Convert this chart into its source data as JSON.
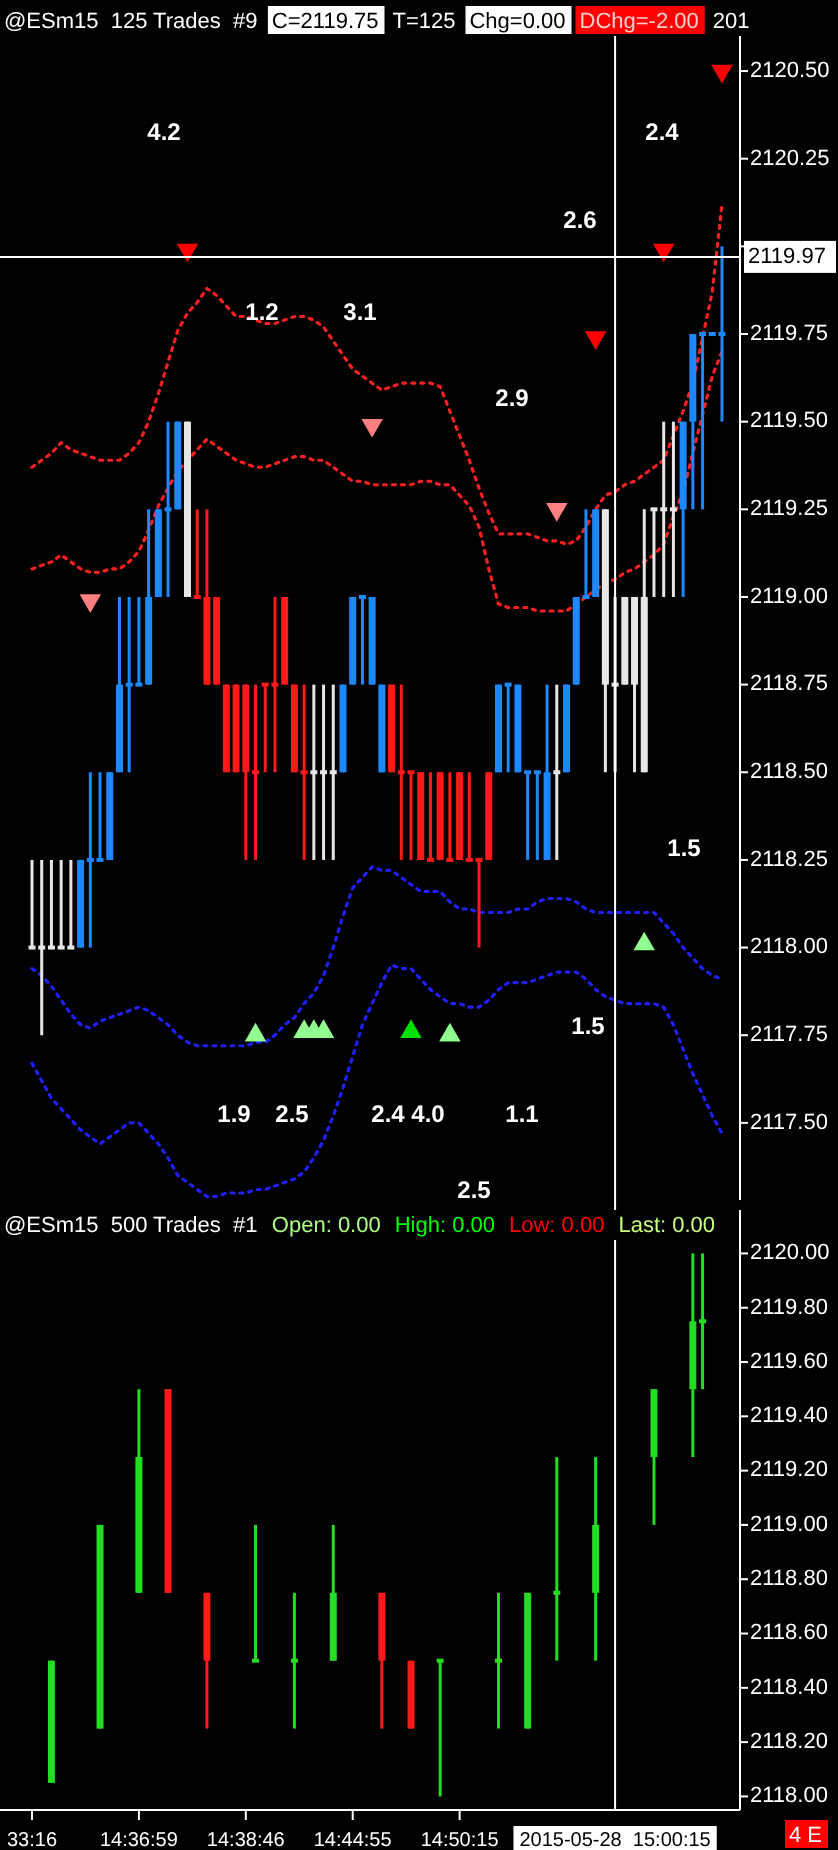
{
  "chart_data": [
    {
      "type": "candlestick",
      "title": "@ESm15  125 Trades  #9",
      "annotations": [
        "C=2119.75",
        "T=125",
        "Chg=0.00",
        "DChg=-2.00",
        "201",
        "4.2",
        "1.2",
        "3.1",
        "2.9",
        "2.6",
        "2.4",
        "1.5",
        "1.5",
        "1.9",
        "2.5",
        "2.4",
        "4.0",
        "1.1",
        "2.5"
      ],
      "categories": [
        "33:16",
        null,
        null,
        null,
        null,
        null,
        null,
        null,
        null,
        null,
        null,
        "14:36:59",
        null,
        null,
        null,
        null,
        null,
        null,
        null,
        null,
        null,
        null,
        "14:38:46",
        null,
        null,
        null,
        null,
        null,
        null,
        null,
        null,
        null,
        null,
        "14:44:55",
        null,
        null,
        null,
        null,
        null,
        null,
        null,
        null,
        null,
        null,
        "14:50:15",
        null,
        null,
        null,
        null,
        null,
        null,
        null,
        null,
        null,
        null,
        null,
        null,
        null,
        null,
        null,
        "2015-05-28  15:00:15",
        null,
        null,
        null,
        null,
        null,
        null,
        null,
        null,
        null,
        null,
        null
      ],
      "ohlc": [
        [
          2118.0,
          2118.25,
          2118.0,
          2118.0
        ],
        [
          2118.0,
          2118.25,
          2117.75,
          2118.0
        ],
        [
          2118.0,
          2118.25,
          2118.0,
          2118.0
        ],
        [
          2118.0,
          2118.25,
          2118.0,
          2118.0
        ],
        [
          2118.0,
          2118.25,
          2118.0,
          2118.0
        ],
        [
          2118.0,
          2118.25,
          2118.0,
          2118.25
        ],
        [
          2118.25,
          2118.5,
          2118.0,
          2118.25
        ],
        [
          2118.25,
          2118.5,
          2118.25,
          2118.25
        ],
        [
          2118.25,
          2118.5,
          2118.25,
          2118.5
        ],
        [
          2118.5,
          2119.0,
          2118.5,
          2118.75
        ],
        [
          2118.75,
          2119.0,
          2118.5,
          2118.75
        ],
        [
          2118.75,
          2119.0,
          2118.75,
          2118.75
        ],
        [
          2118.75,
          2119.25,
          2118.75,
          2119.0
        ],
        [
          2119.0,
          2119.25,
          2119.0,
          2119.25
        ],
        [
          2119.25,
          2119.5,
          2119.0,
          2119.25
        ],
        [
          2119.25,
          2119.5,
          2119.25,
          2119.5
        ],
        [
          2119.5,
          2119.5,
          2119.0,
          2119.0
        ],
        [
          2119.0,
          2119.25,
          2119.0,
          2119.0
        ],
        [
          2119.0,
          2119.25,
          2118.75,
          2118.75
        ],
        [
          2119.0,
          2119.0,
          2118.75,
          2118.75
        ],
        [
          2118.75,
          2118.75,
          2118.5,
          2118.5
        ],
        [
          2118.75,
          2118.75,
          2118.5,
          2118.5
        ],
        [
          2118.75,
          2118.75,
          2118.25,
          2118.5
        ],
        [
          2118.5,
          2118.75,
          2118.25,
          2118.5
        ],
        [
          2118.75,
          2118.75,
          2118.5,
          2118.75
        ],
        [
          2118.75,
          2119.0,
          2118.5,
          2118.75
        ],
        [
          2119.0,
          2119.0,
          2118.75,
          2118.75
        ],
        [
          2118.75,
          2118.75,
          2118.5,
          2118.5
        ],
        [
          2118.5,
          2118.75,
          2118.25,
          2118.5
        ],
        [
          2118.5,
          2118.75,
          2118.25,
          2118.5
        ],
        [
          2118.5,
          2118.75,
          2118.25,
          2118.5
        ],
        [
          2118.5,
          2118.75,
          2118.25,
          2118.5
        ],
        [
          2118.5,
          2118.75,
          2118.5,
          2118.75
        ],
        [
          2118.75,
          2119.0,
          2118.75,
          2119.0
        ],
        [
          2119.0,
          2119.0,
          2118.75,
          2119.0
        ],
        [
          2118.75,
          2119.0,
          2118.75,
          2119.0
        ],
        [
          2118.5,
          2118.75,
          2118.5,
          2118.75
        ],
        [
          2118.75,
          2118.75,
          2118.5,
          2118.5
        ],
        [
          2118.5,
          2118.75,
          2118.25,
          2118.5
        ],
        [
          2118.5,
          2118.5,
          2118.25,
          2118.5
        ],
        [
          2118.5,
          2118.5,
          2118.25,
          2118.25
        ],
        [
          2118.25,
          2118.5,
          2118.25,
          2118.25
        ],
        [
          2118.5,
          2118.5,
          2118.25,
          2118.25
        ],
        [
          2118.25,
          2118.5,
          2118.25,
          2118.25
        ],
        [
          2118.5,
          2118.5,
          2118.25,
          2118.25
        ],
        [
          2118.25,
          2118.5,
          2118.25,
          2118.25
        ],
        [
          2118.25,
          2118.25,
          2118.0,
          2118.25
        ],
        [
          2118.5,
          2118.5,
          2118.25,
          2118.25
        ],
        [
          2118.5,
          2118.75,
          2118.5,
          2118.75
        ],
        [
          2118.75,
          2118.75,
          2118.5,
          2118.75
        ],
        [
          2118.5,
          2118.75,
          2118.5,
          2118.75
        ],
        [
          2118.5,
          2118.5,
          2118.25,
          2118.5
        ],
        [
          2118.5,
          2118.5,
          2118.25,
          2118.5
        ],
        [
          2118.25,
          2118.75,
          2118.25,
          2118.5
        ],
        [
          2118.5,
          2118.75,
          2118.25,
          2118.5
        ],
        [
          2118.5,
          2118.75,
          2118.5,
          2118.75
        ],
        [
          2118.75,
          2119.0,
          2118.75,
          2119.0
        ],
        [
          2119.0,
          2119.25,
          2119.0,
          2119.0
        ],
        [
          2119.0,
          2119.25,
          2119.0,
          2119.25
        ],
        [
          2119.25,
          2119.25,
          2118.5,
          2118.75
        ],
        [
          2118.75,
          2119.0,
          2118.5,
          2118.75
        ],
        [
          2118.75,
          2119.0,
          2118.75,
          2119.0
        ],
        [
          2119.0,
          2119.0,
          2118.5,
          2118.75
        ],
        [
          2118.5,
          2119.25,
          2118.5,
          2119.0
        ],
        [
          2119.25,
          2119.25,
          2119.0,
          2119.25
        ],
        [
          2119.25,
          2119.5,
          2119.0,
          2119.25
        ],
        [
          2119.25,
          2119.5,
          2119.0,
          2119.25
        ],
        [
          2119.25,
          2119.5,
          2119.0,
          2119.5
        ],
        [
          2119.5,
          2119.75,
          2119.25,
          2119.75
        ],
        [
          2119.75,
          2119.75,
          2119.25,
          2119.75
        ],
        [
          2119.75,
          2119.75,
          2119.75,
          2119.75
        ],
        [
          2119.75,
          2120.0,
          2119.5,
          2119.75
        ]
      ],
      "colors": [
        "#e6e6e6",
        "#e6e6e6",
        "#e6e6e6",
        "#e6e6e6",
        "#e6e6e6",
        "#1e88ff",
        "#1e88ff",
        "#1e88ff",
        "#1e88ff",
        "#1e88ff",
        "#1e88ff",
        "#1e88ff",
        "#1e88ff",
        "#1e88ff",
        "#1e88ff",
        "#1e88ff",
        "#e6e6e6",
        "#ff1a1a",
        "#ff1a1a",
        "#ff1a1a",
        "#ff1a1a",
        "#ff1a1a",
        "#ff1a1a",
        "#ff1a1a",
        "#ff1a1a",
        "#ff1a1a",
        "#ff1a1a",
        "#ff1a1a",
        "#ff1a1a",
        "#e6e6e6",
        "#e6e6e6",
        "#e6e6e6",
        "#1e88ff",
        "#1e88ff",
        "#1e88ff",
        "#1e88ff",
        "#1e88ff",
        "#ff1a1a",
        "#ff1a1a",
        "#ff1a1a",
        "#ff1a1a",
        "#ff1a1a",
        "#ff1a1a",
        "#ff1a1a",
        "#ff1a1a",
        "#ff1a1a",
        "#ff1a1a",
        "#ff1a1a",
        "#1e88ff",
        "#1e88ff",
        "#1e88ff",
        "#1e88ff",
        "#1e88ff",
        "#1e88ff",
        "#e6e6e6",
        "#1e88ff",
        "#1e88ff",
        "#1e88ff",
        "#1e88ff",
        "#e6e6e6",
        "#e6e6e6",
        "#e6e6e6",
        "#e6e6e6",
        "#e6e6e6",
        "#e6e6e6",
        "#e6e6e6",
        "#e6e6e6",
        "#1e88ff",
        "#1e88ff",
        "#1e88ff",
        "#1e88ff",
        "#1e88ff"
      ],
      "series": [
        {
          "type": "line",
          "color": "#ff2020",
          "line_style": "dotted",
          "values": [
            2119.37,
            2119.39,
            2119.41,
            2119.44,
            2119.42,
            2119.41,
            2119.4,
            2119.39,
            2119.39,
            2119.39,
            2119.41,
            2119.44,
            2119.5,
            2119.58,
            2119.67,
            2119.76,
            2119.81,
            2119.84,
            2119.88,
            2119.86,
            2119.83,
            2119.8,
            2119.8,
            2119.79,
            2119.78,
            2119.78,
            2119.79,
            2119.8,
            2119.8,
            2119.79,
            2119.77,
            2119.73,
            2119.69,
            2119.65,
            2119.63,
            2119.61,
            2119.59,
            2119.6,
            2119.61,
            2119.61,
            2119.61,
            2119.61,
            2119.6,
            2119.53,
            2119.46,
            2119.39,
            2119.31,
            2119.24,
            2119.18,
            2119.18,
            2119.18,
            2119.18,
            2119.17,
            2119.16,
            2119.16,
            2119.15,
            2119.16,
            2119.2,
            2119.25,
            2119.29,
            2119.3,
            2119.32,
            2119.33,
            2119.35,
            2119.37,
            2119.39,
            2119.46,
            2119.53,
            2119.61,
            2119.74,
            2119.87,
            2120.12
          ]
        },
        {
          "type": "line",
          "color": "#ff2020",
          "line_style": "dotted",
          "values": [
            2119.08,
            2119.09,
            2119.1,
            2119.12,
            2119.1,
            2119.08,
            2119.07,
            2119.07,
            2119.08,
            2119.08,
            2119.1,
            2119.13,
            2119.19,
            2119.26,
            2119.31,
            2119.36,
            2119.39,
            2119.42,
            2119.45,
            2119.43,
            2119.41,
            2119.39,
            2119.38,
            2119.37,
            2119.37,
            2119.38,
            2119.39,
            2119.4,
            2119.4,
            2119.39,
            2119.39,
            2119.37,
            2119.35,
            2119.33,
            2119.33,
            2119.32,
            2119.32,
            2119.32,
            2119.32,
            2119.32,
            2119.33,
            2119.33,
            2119.32,
            2119.32,
            2119.29,
            2119.26,
            2119.2,
            2119.08,
            2118.98,
            2118.97,
            2118.97,
            2118.97,
            2118.96,
            2118.96,
            2118.96,
            2118.96,
            2118.98,
            2119.0,
            2119.02,
            2119.04,
            2119.05,
            2119.07,
            2119.08,
            2119.1,
            2119.12,
            2119.15,
            2119.23,
            2119.3,
            2119.41,
            2119.52,
            2119.63,
            2119.7
          ]
        },
        {
          "type": "line",
          "color": "#2020ff",
          "line_style": "dotted",
          "values": [
            2117.94,
            2117.92,
            2117.89,
            2117.85,
            2117.81,
            2117.78,
            2117.77,
            2117.79,
            2117.8,
            2117.81,
            2117.82,
            2117.83,
            2117.82,
            2117.8,
            2117.78,
            2117.75,
            2117.73,
            2117.72,
            2117.72,
            2117.72,
            2117.72,
            2117.72,
            2117.72,
            2117.73,
            2117.73,
            2117.75,
            2117.78,
            2117.8,
            2117.84,
            2117.87,
            2117.92,
            2118.0,
            2118.09,
            2118.17,
            2118.2,
            2118.23,
            2118.22,
            2118.22,
            2118.2,
            2118.18,
            2118.16,
            2118.16,
            2118.16,
            2118.13,
            2118.11,
            2118.11,
            2118.1,
            2118.1,
            2118.1,
            2118.1,
            2118.11,
            2118.11,
            2118.13,
            2118.14,
            2118.14,
            2118.14,
            2118.13,
            2118.11,
            2118.1,
            2118.1,
            2118.1,
            2118.1,
            2118.1,
            2118.1,
            2118.1,
            2118.07,
            2118.04,
            2118.0,
            2117.97,
            2117.94,
            2117.92,
            2117.91
          ]
        },
        {
          "type": "line",
          "color": "#2020ff",
          "line_style": "dotted",
          "values": [
            2117.67,
            2117.62,
            2117.57,
            2117.54,
            2117.51,
            2117.48,
            2117.46,
            2117.44,
            2117.46,
            2117.48,
            2117.5,
            2117.5,
            2117.47,
            2117.44,
            2117.4,
            2117.35,
            2117.33,
            2117.31,
            2117.29,
            2117.29,
            2117.3,
            2117.3,
            2117.3,
            2117.31,
            2117.31,
            2117.32,
            2117.33,
            2117.34,
            2117.36,
            2117.4,
            2117.45,
            2117.52,
            2117.6,
            2117.69,
            2117.78,
            2117.84,
            2117.9,
            2117.95,
            2117.94,
            2117.94,
            2117.91,
            2117.88,
            2117.86,
            2117.84,
            2117.84,
            2117.83,
            2117.83,
            2117.85,
            2117.88,
            2117.9,
            2117.9,
            2117.9,
            2117.91,
            2117.92,
            2117.93,
            2117.93,
            2117.93,
            2117.91,
            2117.88,
            2117.86,
            2117.85,
            2117.84,
            2117.84,
            2117.84,
            2117.84,
            2117.83,
            2117.78,
            2117.71,
            2117.64,
            2117.58,
            2117.52,
            2117.47
          ]
        },
        {
          "type": "scatter",
          "color": "#ff0000",
          "marker": "triangle-down",
          "values": [
            null,
            null,
            null,
            null,
            null,
            null,
            null,
            null,
            null,
            null,
            null,
            null,
            null,
            null,
            null,
            null,
            2119.99,
            null,
            null,
            null,
            null,
            null,
            null,
            null,
            null,
            null,
            null,
            null,
            null,
            null,
            null,
            null,
            null,
            null,
            null,
            null,
            null,
            null,
            null,
            null,
            null,
            null,
            null,
            null,
            null,
            null,
            null,
            null,
            null,
            null,
            null,
            null,
            null,
            null,
            null,
            null,
            null,
            null,
            2119.74,
            null,
            null,
            null,
            null,
            null,
            null,
            2119.99,
            null,
            null,
            null,
            null,
            null,
            2120.5
          ]
        },
        {
          "type": "scatter",
          "color": "#ff8080",
          "marker": "triangle-down",
          "values": [
            null,
            null,
            null,
            null,
            null,
            null,
            2118.99,
            null,
            null,
            null,
            null,
            null,
            null,
            null,
            null,
            null,
            null,
            null,
            null,
            null,
            null,
            null,
            null,
            null,
            null,
            null,
            null,
            null,
            null,
            null,
            null,
            null,
            null,
            null,
            null,
            2119.49,
            null,
            null,
            null,
            null,
            null,
            null,
            null,
            null,
            null,
            null,
            null,
            null,
            null,
            null,
            null,
            null,
            null,
            null,
            2119.25,
            null,
            null,
            null,
            null,
            null,
            null,
            null,
            null,
            null,
            null,
            null,
            null,
            null,
            null,
            null,
            null,
            null
          ]
        },
        {
          "type": "scatter",
          "color": "#90ff90",
          "marker": "triangle",
          "values": [
            null,
            null,
            null,
            null,
            null,
            null,
            null,
            null,
            null,
            null,
            null,
            null,
            null,
            null,
            null,
            null,
            null,
            null,
            null,
            null,
            null,
            null,
            null,
            2117.75,
            null,
            null,
            null,
            null,
            2117.76,
            2117.76,
            2117.76,
            null,
            null,
            null,
            null,
            null,
            null,
            null,
            null,
            null,
            null,
            null,
            null,
            2117.75,
            null,
            null,
            null,
            null,
            null,
            null,
            null,
            null,
            null,
            null,
            null,
            null,
            null,
            null,
            null,
            null,
            null,
            null,
            null,
            2118.01,
            null,
            null,
            null,
            null,
            null,
            null,
            null,
            null
          ]
        },
        {
          "type": "scatter",
          "color": "#00e000",
          "marker": "triangle",
          "values": [
            null,
            null,
            null,
            null,
            null,
            null,
            null,
            null,
            null,
            null,
            null,
            null,
            null,
            null,
            null,
            null,
            null,
            null,
            null,
            null,
            null,
            null,
            null,
            null,
            null,
            null,
            null,
            null,
            null,
            null,
            null,
            null,
            null,
            null,
            null,
            null,
            null,
            null,
            null,
            2117.76,
            null,
            null,
            null,
            null,
            null,
            null,
            null,
            null,
            null,
            null,
            null,
            null,
            null,
            null,
            null,
            null,
            null,
            null,
            null,
            null,
            null,
            null,
            null,
            null,
            null,
            null,
            null,
            null,
            null,
            null,
            null,
            null
          ]
        }
      ],
      "ylim": [
        2117.28,
        2120.6
      ],
      "yticks": [
        {
          "value": 2117.5,
          "label": "2117.50"
        },
        {
          "value": 2117.75,
          "label": "2117.75"
        },
        {
          "value": 2118,
          "label": "2118.00"
        },
        {
          "value": 2118.25,
          "label": "2118.25"
        },
        {
          "value": 2118.5,
          "label": "2118.50"
        },
        {
          "value": 2118.75,
          "label": "2118.75"
        },
        {
          "value": 2119,
          "label": "2119.00"
        },
        {
          "value": 2119.25,
          "label": "2119.25"
        },
        {
          "value": 2119.5,
          "label": "2119.50"
        },
        {
          "value": 2119.75,
          "label": "2119.75"
        },
        {
          "value": 2120,
          "label": null
        },
        {
          "value": 2120.25,
          "label": "2120.25"
        },
        {
          "value": 2120.5,
          "label": "2120.50"
        }
      ],
      "tick_labels": "y",
      "ref_lines": [
        {
          "axis": "x",
          "value": "2015-05-28  15:00:15",
          "label": null,
          "color": "#ffffff"
        },
        {
          "axis": "y",
          "value": 2119.97,
          "label": "2119.97",
          "color": "#ffffff"
        }
      ]
    },
    {
      "type": "candlestick",
      "title": "@ESm15  500 Trades  #1",
      "annotations": [
        "Open: 0.00",
        "High: 0.00",
        "Low: 0.00",
        "Last: 0.00",
        "4 E"
      ],
      "categories": [
        "33:16",
        null,
        null,
        null,
        null,
        null,
        null,
        null,
        null,
        null,
        null,
        "14:36:59",
        null,
        null,
        null,
        null,
        null,
        null,
        null,
        null,
        null,
        null,
        "14:38:46",
        null,
        null,
        null,
        null,
        null,
        null,
        null,
        null,
        null,
        null,
        "14:44:55",
        null,
        null,
        null,
        null,
        null,
        null,
        null,
        null,
        null,
        null,
        "14:50:15",
        null,
        null,
        null,
        null,
        null,
        null,
        null,
        null,
        null,
        null,
        null,
        null,
        null,
        null,
        null,
        "2015-05-28  15:00:15",
        null,
        null,
        null,
        null,
        null,
        null,
        null,
        null,
        null,
        null,
        null
      ],
      "ohlc": [
        null,
        null,
        [
          2118.05,
          2118.5,
          2118.05,
          2118.5
        ],
        null,
        null,
        null,
        null,
        [
          2118.25,
          2119.0,
          2118.25,
          2119.0
        ],
        null,
        null,
        null,
        [
          2118.75,
          2119.5,
          2118.75,
          2119.25
        ],
        null,
        null,
        [
          2119.5,
          2119.5,
          2118.75,
          2118.75
        ],
        null,
        null,
        null,
        [
          2118.75,
          2118.75,
          2118.25,
          2118.5
        ],
        null,
        null,
        null,
        null,
        [
          2118.5,
          2119.0,
          2118.5,
          2118.5
        ],
        null,
        null,
        null,
        [
          2118.5,
          2118.75,
          2118.25,
          2118.5
        ],
        null,
        null,
        null,
        [
          2118.5,
          2119.0,
          2118.5,
          2118.75
        ],
        null,
        null,
        null,
        null,
        [
          2118.75,
          2118.75,
          2118.25,
          2118.5
        ],
        null,
        null,
        [
          2118.5,
          2118.5,
          2118.25,
          2118.25
        ],
        null,
        null,
        [
          2118.5,
          2118.5,
          2118.0,
          2118.5
        ],
        null,
        null,
        null,
        null,
        null,
        [
          2118.5,
          2118.75,
          2118.25,
          2118.5
        ],
        null,
        null,
        [
          2118.25,
          2118.75,
          2118.25,
          2118.75
        ],
        null,
        null,
        [
          2118.75,
          2119.25,
          2118.5,
          2118.75
        ],
        null,
        null,
        null,
        [
          2118.75,
          2119.25,
          2118.5,
          2119.0
        ],
        null,
        null,
        null,
        null,
        null,
        [
          2119.25,
          2119.5,
          2119.0,
          2119.5
        ],
        null,
        null,
        null,
        [
          2119.5,
          2120.0,
          2119.25,
          2119.75
        ],
        [
          2119.75,
          2120.0,
          2119.5,
          2119.75
        ],
        null,
        null
      ],
      "colors": [
        null,
        null,
        "#22dd22",
        null,
        null,
        null,
        null,
        "#22dd22",
        null,
        null,
        null,
        "#22dd22",
        null,
        null,
        "#ff1a1a",
        null,
        null,
        null,
        "#ff1a1a",
        null,
        null,
        null,
        null,
        "#22dd22",
        null,
        null,
        null,
        "#22dd22",
        null,
        null,
        null,
        "#22dd22",
        null,
        null,
        null,
        null,
        "#ff1a1a",
        null,
        null,
        "#ff1a1a",
        null,
        null,
        "#22dd22",
        null,
        null,
        null,
        null,
        null,
        "#22dd22",
        null,
        null,
        "#22dd22",
        null,
        null,
        "#22dd22",
        null,
        null,
        null,
        "#22dd22",
        null,
        null,
        null,
        null,
        null,
        "#22dd22",
        null,
        null,
        null,
        "#22dd22",
        "#22dd22",
        null,
        null
      ],
      "ylim": [
        2117.95,
        2120.16
      ],
      "yticks": [
        {
          "value": 2118,
          "label": "2118.00"
        },
        {
          "value": 2118.2,
          "label": "2118.20"
        },
        {
          "value": 2118.4,
          "label": "2118.40"
        },
        {
          "value": 2118.6,
          "label": "2118.60"
        },
        {
          "value": 2118.8,
          "label": "2118.80"
        },
        {
          "value": 2119,
          "label": "2119.00"
        },
        {
          "value": 2119.2,
          "label": "2119.20"
        },
        {
          "value": 2119.4,
          "label": "2119.40"
        },
        {
          "value": 2119.6,
          "label": "2119.60"
        },
        {
          "value": 2119.8,
          "label": "2119.80"
        },
        {
          "value": 2120,
          "label": "2120.00"
        }
      ],
      "ref_lines": [
        {
          "axis": "x",
          "value": "2015-05-28  15:00:15",
          "label": null,
          "color": "#ffffff"
        }
      ]
    }
  ]
}
